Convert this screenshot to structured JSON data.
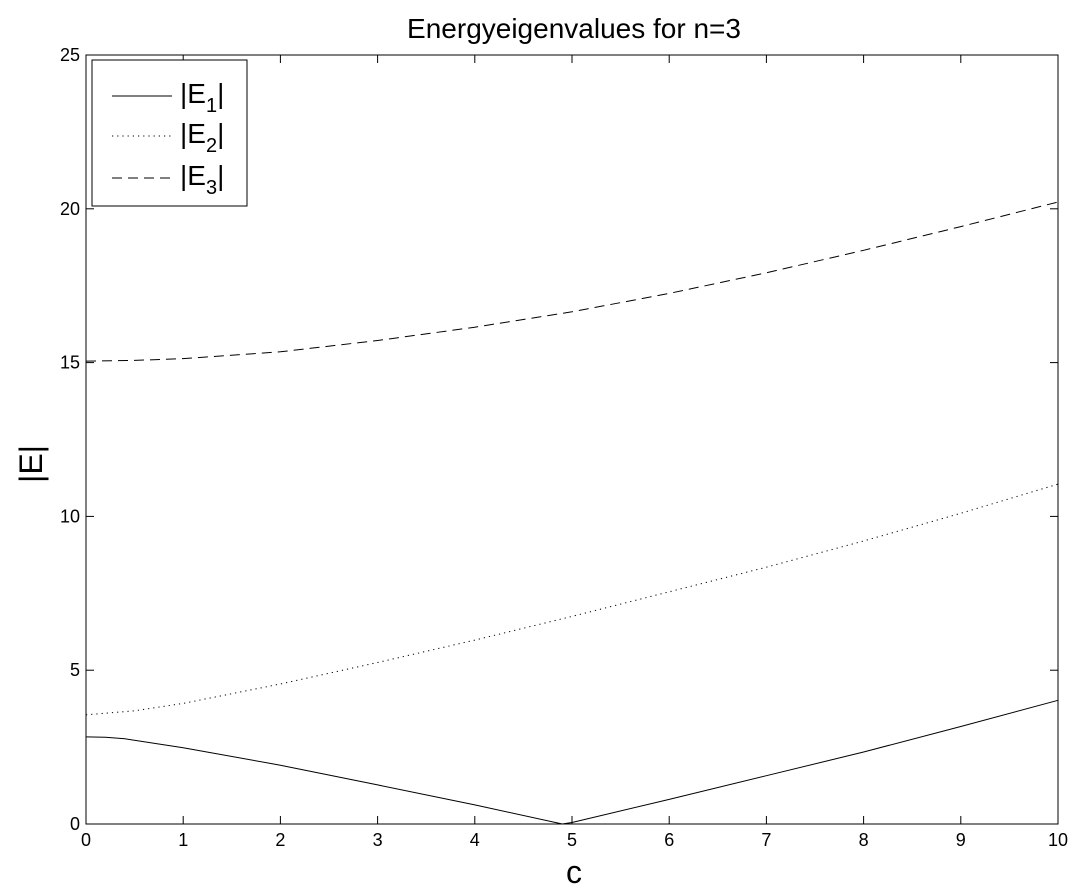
{
  "chart_data": {
    "type": "line",
    "title": "Energyeigenvalues for n=3",
    "xlabel": "c",
    "ylabel": "|E|",
    "xlim": [
      0,
      10
    ],
    "ylim": [
      0,
      25
    ],
    "xticks": [
      0,
      1,
      2,
      3,
      4,
      5,
      6,
      7,
      8,
      9,
      10
    ],
    "yticks": [
      0,
      5,
      10,
      15,
      20,
      25
    ],
    "grid": false,
    "legend_position": "top-left",
    "series": [
      {
        "name": "|E1|",
        "legend_main": "|E",
        "legend_sub": "1",
        "legend_end": "|",
        "style": "solid",
        "x": [
          0,
          0.2,
          0.4,
          1,
          2,
          3,
          4,
          4.9,
          5,
          6,
          7,
          8,
          9,
          10
        ],
        "y": [
          2.83,
          2.82,
          2.77,
          2.48,
          1.91,
          1.27,
          0.62,
          0.0,
          0.05,
          0.8,
          1.57,
          2.34,
          3.17,
          4.02
        ]
      },
      {
        "name": "|E2|",
        "legend_main": "|E",
        "legend_sub": "2",
        "legend_end": "|",
        "style": "dotted",
        "x": [
          0,
          0.5,
          1,
          2,
          3,
          4,
          5,
          6,
          7,
          8,
          9,
          10
        ],
        "y": [
          3.55,
          3.68,
          3.92,
          4.55,
          5.25,
          5.98,
          6.75,
          7.55,
          8.35,
          9.2,
          10.1,
          11.05
        ]
      },
      {
        "name": "|E3|",
        "legend_main": "|E",
        "legend_sub": "3",
        "legend_end": "|",
        "style": "dashed",
        "x": [
          0,
          0.5,
          1,
          2,
          3,
          4,
          5,
          6,
          7,
          8,
          9,
          10
        ],
        "y": [
          15.05,
          15.07,
          15.13,
          15.35,
          15.72,
          16.15,
          16.65,
          17.25,
          17.92,
          18.65,
          19.42,
          20.22
        ]
      }
    ]
  }
}
